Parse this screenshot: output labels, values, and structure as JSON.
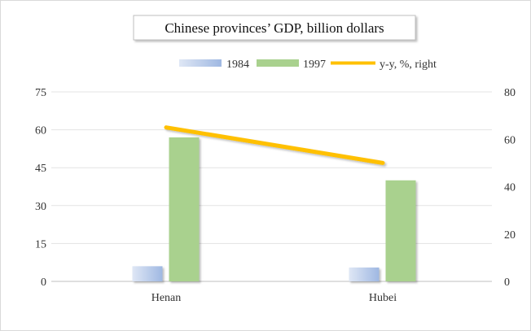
{
  "chart_data": {
    "type": "bar",
    "title": "Chinese provinces’ GDP, billion dollars",
    "categories": [
      "Henan",
      "Hubei"
    ],
    "series": [
      {
        "name": "1984",
        "type": "bar",
        "axis": "left",
        "values": [
          6,
          5.5
        ],
        "color": "#b4c7e7"
      },
      {
        "name": "1997",
        "type": "bar",
        "axis": "left",
        "values": [
          57,
          40
        ],
        "color": "#a9d18e"
      },
      {
        "name": "y-y, %, right",
        "type": "line",
        "axis": "right",
        "values": [
          65,
          50
        ],
        "color": "#ffc000"
      }
    ],
    "y_left": {
      "min": 0,
      "max": 75,
      "ticks": [
        0,
        15,
        30,
        45,
        60,
        75
      ]
    },
    "y_right": {
      "min": 0,
      "max": 80,
      "ticks": [
        0,
        20,
        40,
        60,
        80
      ]
    },
    "grid": true,
    "legend_position": "top"
  }
}
